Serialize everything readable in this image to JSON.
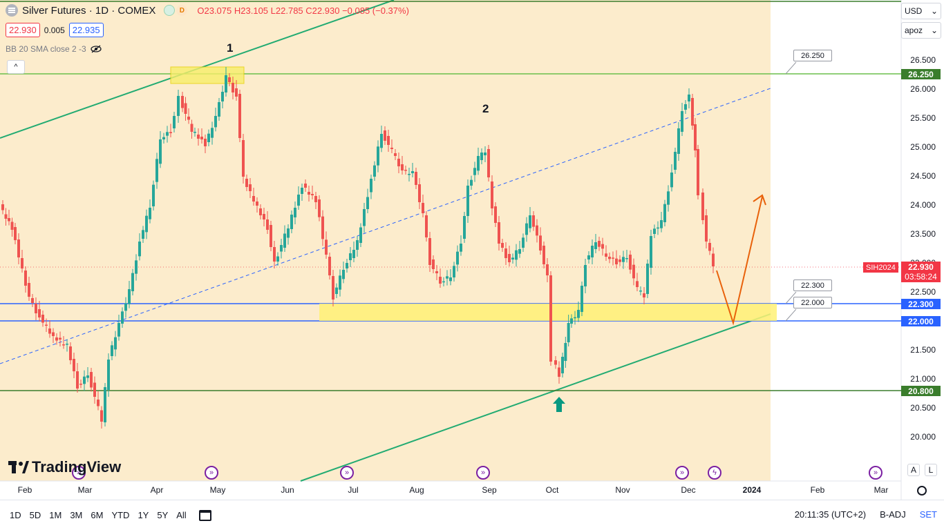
{
  "header": {
    "title": "Silver Futures · 1D · COMEX",
    "dot_d": "D",
    "ohlc": {
      "o": "O23.075",
      "h": "H23.105",
      "l": "L22.785",
      "c": "C22.930",
      "change": "−0.085 (−0.37%)"
    },
    "bid": "22.930",
    "spread": "0.005",
    "ask": "22.935",
    "indicator": "BB 20 SMA close 2 -3"
  },
  "right_panel": {
    "currency": "USD",
    "scale_mode": "apoz"
  },
  "price_scale": [
    "26.500",
    "26.000",
    "25.500",
    "25.000",
    "24.500",
    "24.000",
    "23.500",
    "23.000",
    "22.500",
    "22.000",
    "21.500",
    "21.000",
    "20.500",
    "20.000"
  ],
  "tags": {
    "r26250": "26.250",
    "r22300": "22.300",
    "r22000": "22.000",
    "r20800": "20.800",
    "symbol": "SIH2024",
    "last": "22.930",
    "countdown": "03:58:24"
  },
  "callouts": {
    "c1": "26.250",
    "c2": "22.300",
    "c3": "22.000"
  },
  "wave_labels": {
    "w1": "1",
    "w2": "2"
  },
  "time_axis": [
    "Feb",
    "Mar",
    "Apr",
    "May",
    "Jun",
    "Jul",
    "Aug",
    "Sep",
    "Oct",
    "Nov",
    "Dec",
    "2024",
    "Feb",
    "Mar"
  ],
  "bottom": {
    "periods": [
      "1D",
      "5D",
      "1M",
      "3M",
      "6M",
      "YTD",
      "1Y",
      "5Y",
      "All"
    ],
    "clock": "20:11:35 (UTC+2)",
    "adj": "B-ADJ",
    "session": "SET"
  },
  "logo": "TradingView",
  "buttons": {
    "auto": "A",
    "log": "L",
    "collapse": "^"
  },
  "colors": {
    "up": "#26a69a",
    "down": "#ef5350",
    "zone": "#fbe9c3",
    "support": "#2962ff",
    "level": "#3a7d2c",
    "channel": "#22ab72",
    "projection": "#e8610a"
  }
}
